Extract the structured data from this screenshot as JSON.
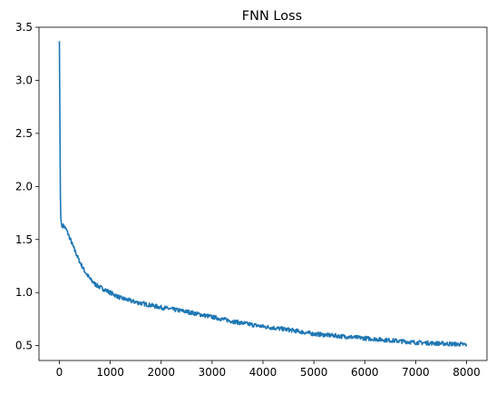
{
  "chart_data": {
    "type": "line",
    "title": "FNN Loss",
    "xlabel": "",
    "ylabel": "",
    "xlim": [
      -400,
      8400
    ],
    "ylim": [
      0.36,
      3.5
    ],
    "x_ticks": [
      0,
      1000,
      2000,
      3000,
      4000,
      5000,
      6000,
      7000,
      8000
    ],
    "x_tick_labels": [
      "0",
      "1000",
      "2000",
      "3000",
      "4000",
      "5000",
      "6000",
      "7000",
      "8000"
    ],
    "y_ticks": [
      0.5,
      1.0,
      1.5,
      2.0,
      2.5,
      3.0,
      3.5
    ],
    "y_tick_labels": [
      "0.5",
      "1.0",
      "1.5",
      "2.0",
      "2.5",
      "3.0",
      "3.5"
    ],
    "grid": false,
    "line_color": "#1f77b4",
    "series": [
      {
        "x": [
          0,
          10,
          20,
          30,
          40,
          50,
          60,
          80,
          100,
          150,
          200,
          300,
          400,
          500,
          600,
          700,
          800,
          1000,
          1200,
          1500,
          2000,
          2500,
          3000,
          3500,
          4000,
          4500,
          5000,
          5500,
          6000,
          6500,
          7000,
          7500,
          8000
        ],
        "y": [
          3.37,
          2.7,
          1.9,
          1.7,
          1.65,
          1.62,
          1.63,
          1.63,
          1.62,
          1.58,
          1.52,
          1.4,
          1.29,
          1.2,
          1.13,
          1.08,
          1.05,
          1.0,
          0.95,
          0.91,
          0.86,
          0.82,
          0.77,
          0.72,
          0.68,
          0.65,
          0.61,
          0.59,
          0.57,
          0.55,
          0.53,
          0.52,
          0.51
        ]
      }
    ]
  }
}
